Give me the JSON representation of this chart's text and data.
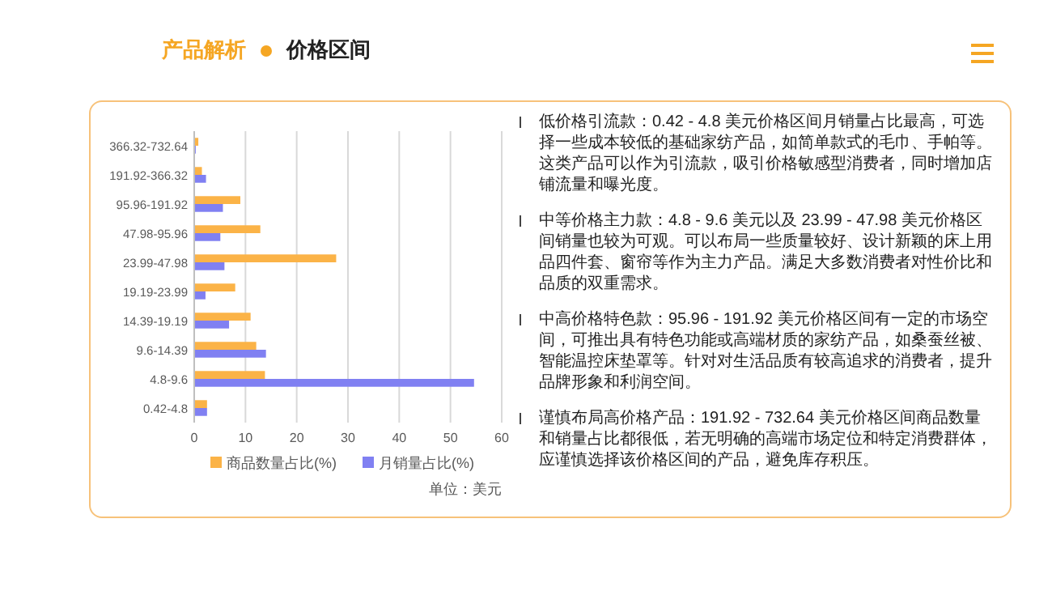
{
  "chart_data": {
    "type": "bar",
    "orientation": "horizontal",
    "title": "产品解析",
    "subtitle": "价格区间",
    "categories": [
      "366.32-732.64",
      "191.92-366.32",
      "95.96-191.92",
      "47.98-95.96",
      "23.99-47.98",
      "19.19-23.99",
      "14.39-19.19",
      "9.6-14.39",
      "4.8-9.6",
      "0.42-4.8"
    ],
    "series": [
      {
        "name": "商品数量占比(%)",
        "color": "#fbb347",
        "values": [
          0.8,
          1.5,
          9.0,
          12.9,
          27.7,
          8.0,
          11.0,
          12.1,
          13.8,
          2.5
        ]
      },
      {
        "name": "月销量占比(%)",
        "color": "#8080f2",
        "values": [
          0.3,
          2.3,
          5.6,
          5.1,
          5.9,
          2.2,
          6.8,
          14.0,
          54.6,
          2.5
        ]
      }
    ],
    "xlim": [
      0,
      60
    ],
    "xticks": [
      0,
      10,
      20,
      30,
      40,
      50,
      60
    ],
    "grid": "x",
    "legend": "bottom",
    "annotations": [
      "单位：美元",
      "低价格引流款：0.42 - 4.8 美元价格区间月销量占比最高，可选择一些成本较低的基础家纺产品，如简单款式的毛巾、手帕等。这类产品可以作为引流款，吸引价格敏感型消费者，同时增加店铺流量和曝光度。",
      "中等价格主力款：4.8 - 9.6 美元以及 23.99 - 47.98 美元价格区间销量也较为可观。可以布局一些质量较好、设计新颖的床上用品四件套、窗帘等作为主力产品。满足大多数消费者对性价比和品质的双重需求。",
      "中高价格特色款：95.96 - 191.92 美元价格区间有一定的市场空间，可推出具有特色功能或高端材质的家纺产品，如桑蚕丝被、智能温控床垫罩等。针对对生活品质有较高追求的消费者，提升品牌形象和利润空间。",
      "谨慎布局高价格产品：191.92 - 732.64 美元价格区间商品数量和销量占比都很低，若无明确的高端市场定位和特定消费群体，应谨慎选择该价格区间的产品，避免库存积压。"
    ]
  }
}
